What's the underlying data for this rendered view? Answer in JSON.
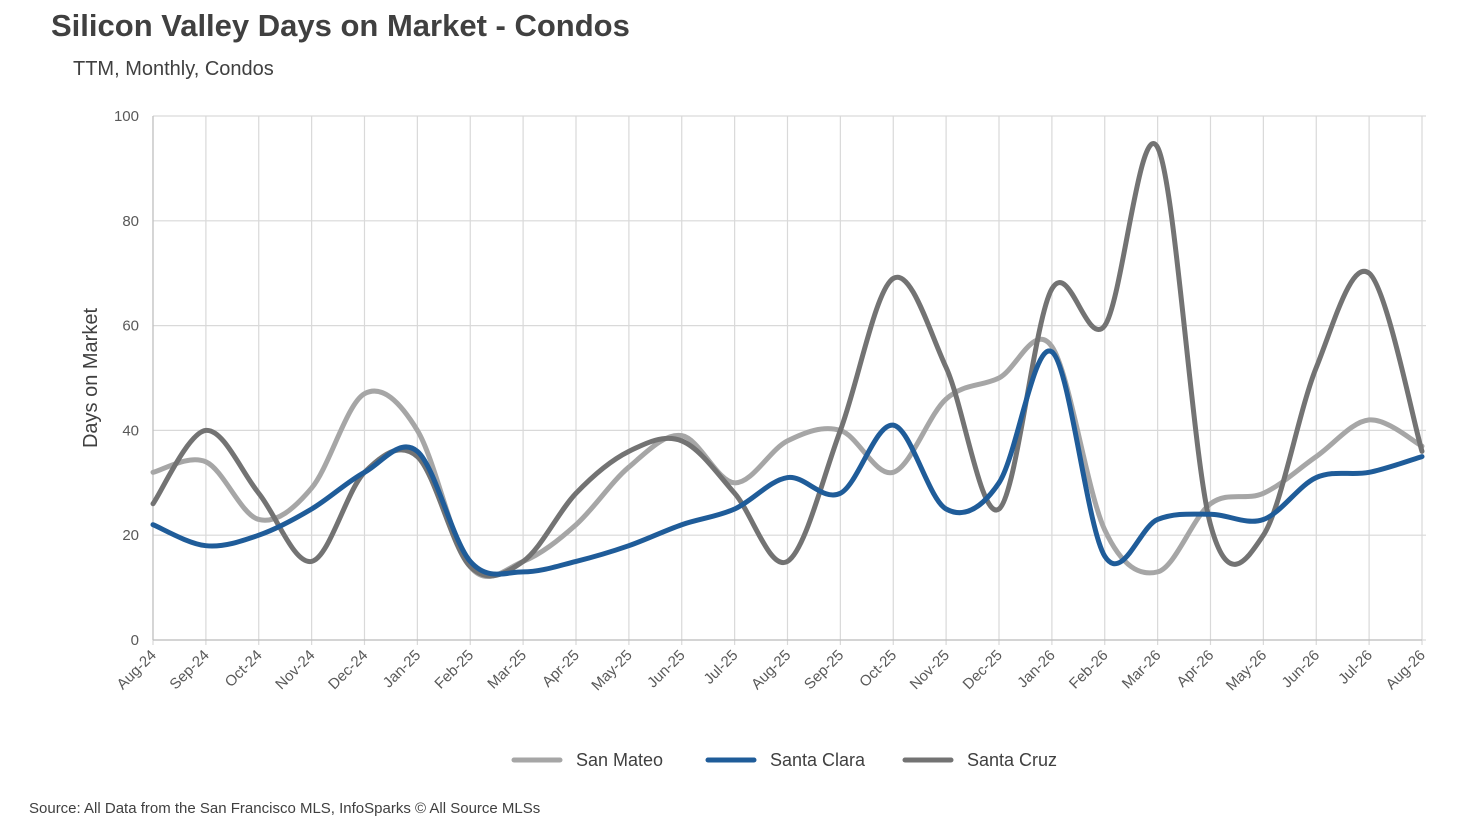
{
  "header": {
    "title": "Silicon Valley Days on Market - Condos",
    "subtitle": "TTM, Monthly, Condos"
  },
  "footer": {
    "source": "Source: All Data from the San Francisco MLS, InfoSparks © All Source MLSs"
  },
  "chart_data": {
    "type": "line",
    "title": "Silicon Valley Days on Market - Condos",
    "subtitle": "TTM, Monthly, Condos",
    "xlabel": "",
    "ylabel": "Days on Market",
    "ylim": [
      0,
      100
    ],
    "yticks": [
      0,
      20,
      40,
      60,
      80,
      100
    ],
    "grid": true,
    "legend_position": "bottom",
    "categories": [
      "Aug-24",
      "Sep-24",
      "Oct-24",
      "Nov-24",
      "Dec-24",
      "Jan-25",
      "Feb-25",
      "Mar-25",
      "Apr-25",
      "May-25",
      "Jun-25",
      "Jul-25",
      "Aug-25",
      "Sep-25",
      "Oct-25",
      "Nov-25",
      "Dec-25",
      "Jan-26",
      "Feb-26",
      "Mar-26",
      "Apr-26",
      "May-26",
      "Jun-26",
      "Jul-26",
      "Aug-26"
    ],
    "series": [
      {
        "name": "San Mateo",
        "color": "#A6A6A6",
        "values": [
          32,
          34,
          23,
          29,
          47,
          40,
          14,
          15,
          22,
          33,
          39,
          30,
          38,
          40,
          32,
          46,
          50,
          56,
          21,
          13,
          26,
          28,
          35,
          42,
          37
        ]
      },
      {
        "name": "Santa Clara",
        "color": "#1F5C99",
        "values": [
          22,
          18,
          20,
          25,
          32,
          36,
          15,
          13,
          15,
          18,
          22,
          25,
          31,
          28,
          41,
          25,
          30,
          55,
          16,
          23,
          24,
          23,
          31,
          32,
          35
        ]
      },
      {
        "name": "Santa Cruz",
        "color": "#737373",
        "values": [
          26,
          40,
          28,
          15,
          32,
          35,
          14,
          15,
          28,
          36,
          38,
          28,
          15,
          40,
          69,
          52,
          25,
          67,
          60,
          94,
          22,
          20,
          52,
          70,
          36
        ]
      }
    ]
  }
}
